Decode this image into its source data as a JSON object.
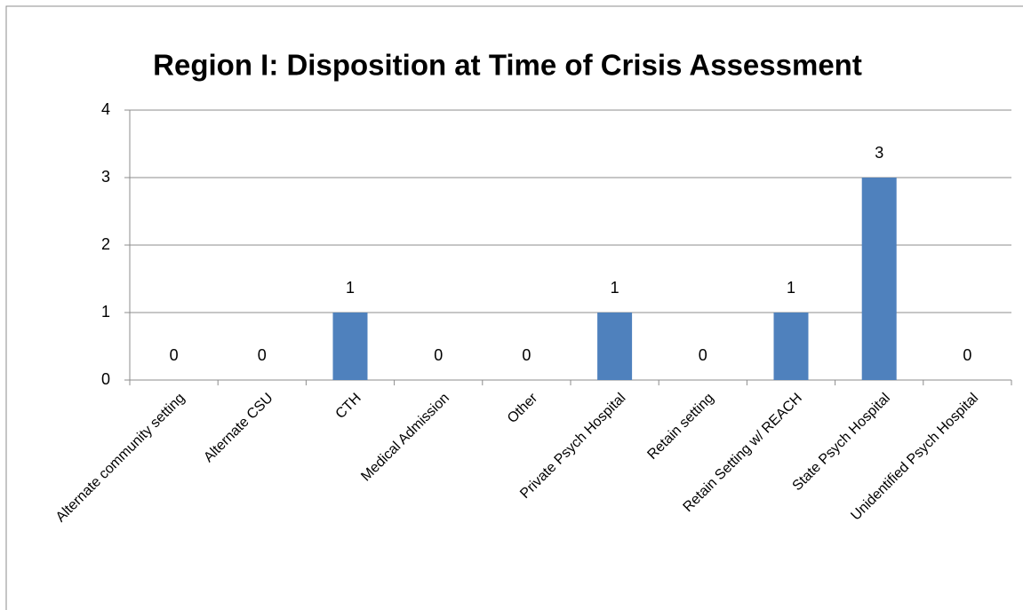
{
  "chart_data": {
    "type": "bar",
    "title": "Region I: Disposition at Time of Crisis Assessment",
    "categories": [
      "Alternate community setting",
      "Alternate CSU",
      "CTH",
      "Medical Admission",
      "Other",
      "Private Psych Hospital",
      "Retain setting",
      "Retain Setting w/ REACH",
      "State Psych Hospital",
      "Unidentified Psych Hospital"
    ],
    "values": [
      0,
      0,
      1,
      0,
      0,
      1,
      0,
      1,
      3,
      0
    ],
    "color": "#4f81bd",
    "ylim": [
      0,
      4
    ],
    "yticks": [
      0,
      1,
      2,
      3,
      4
    ],
    "grid": true
  }
}
